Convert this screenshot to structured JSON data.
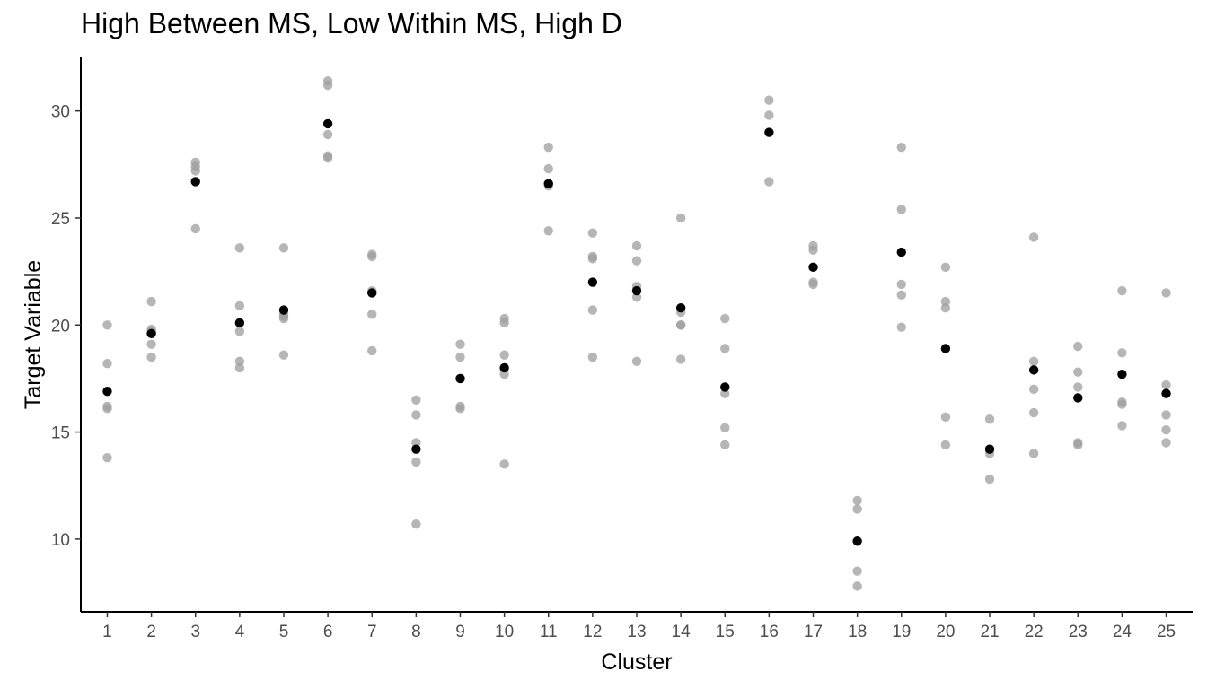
{
  "chart_data": {
    "type": "scatter",
    "title": "High Between MS, Low Within MS, High D",
    "xlabel": "Cluster",
    "ylabel": "Target Variable",
    "categories": [
      "1",
      "2",
      "3",
      "4",
      "5",
      "6",
      "7",
      "8",
      "9",
      "10",
      "11",
      "12",
      "13",
      "14",
      "15",
      "16",
      "17",
      "18",
      "19",
      "20",
      "21",
      "22",
      "23",
      "24",
      "25"
    ],
    "ylim": [
      6.6,
      32.5
    ],
    "yticks": [
      10,
      15,
      20,
      25,
      30
    ],
    "grid": false,
    "legend": "none",
    "colors": {
      "observation": "#9e9e9e",
      "cluster_mean": "#000000"
    },
    "series": [
      {
        "values": [
          [
            20.0,
            18.2,
            16.2,
            16.1,
            13.8
          ],
          [
            21.1,
            19.8,
            19.7,
            19.1,
            18.5
          ],
          [
            27.6,
            27.4,
            27.2,
            24.5
          ],
          [
            23.6,
            20.9,
            19.7,
            18.3,
            18.0
          ],
          [
            23.6,
            20.5,
            20.4,
            20.3,
            18.6
          ],
          [
            31.4,
            31.2,
            28.9,
            27.9,
            27.8
          ],
          [
            23.3,
            23.2,
            21.6,
            20.5,
            18.8
          ],
          [
            16.5,
            15.8,
            14.5,
            13.6,
            10.7
          ],
          [
            19.1,
            18.5,
            17.5,
            16.2,
            16.1
          ],
          [
            20.3,
            20.1,
            18.6,
            17.7,
            13.5
          ],
          [
            28.3,
            27.3,
            26.6,
            26.5,
            24.4
          ],
          [
            24.3,
            23.2,
            23.1,
            20.7,
            18.5
          ],
          [
            23.7,
            23.0,
            21.8,
            21.3,
            18.3
          ],
          [
            25.0,
            20.6,
            20.0,
            20.0,
            18.4
          ],
          [
            20.3,
            18.9,
            16.8,
            15.2,
            14.4
          ],
          [
            30.5,
            29.8,
            26.7
          ],
          [
            23.7,
            23.5,
            22.0,
            21.9
          ],
          [
            11.8,
            11.4,
            8.5,
            7.8
          ],
          [
            28.3,
            25.4,
            21.9,
            21.4,
            19.9
          ],
          [
            22.7,
            21.1,
            20.8,
            15.7,
            14.4
          ],
          [
            15.6,
            14.2,
            14.0,
            12.8
          ],
          [
            24.1,
            18.3,
            17.0,
            15.9,
            14.0
          ],
          [
            19.0,
            17.8,
            17.1,
            14.5,
            14.4
          ],
          [
            21.6,
            18.7,
            16.4,
            16.3,
            15.3
          ],
          [
            21.5,
            17.2,
            15.8,
            15.1,
            14.5
          ]
        ]
      },
      {
        "values": [
          16.9,
          19.6,
          26.7,
          20.1,
          20.7,
          29.4,
          21.5,
          14.2,
          17.5,
          18.0,
          26.6,
          22.0,
          21.6,
          20.8,
          17.1,
          29.0,
          22.7,
          9.9,
          23.4,
          18.9,
          14.2,
          17.9,
          16.6,
          17.7,
          16.8
        ]
      }
    ]
  }
}
